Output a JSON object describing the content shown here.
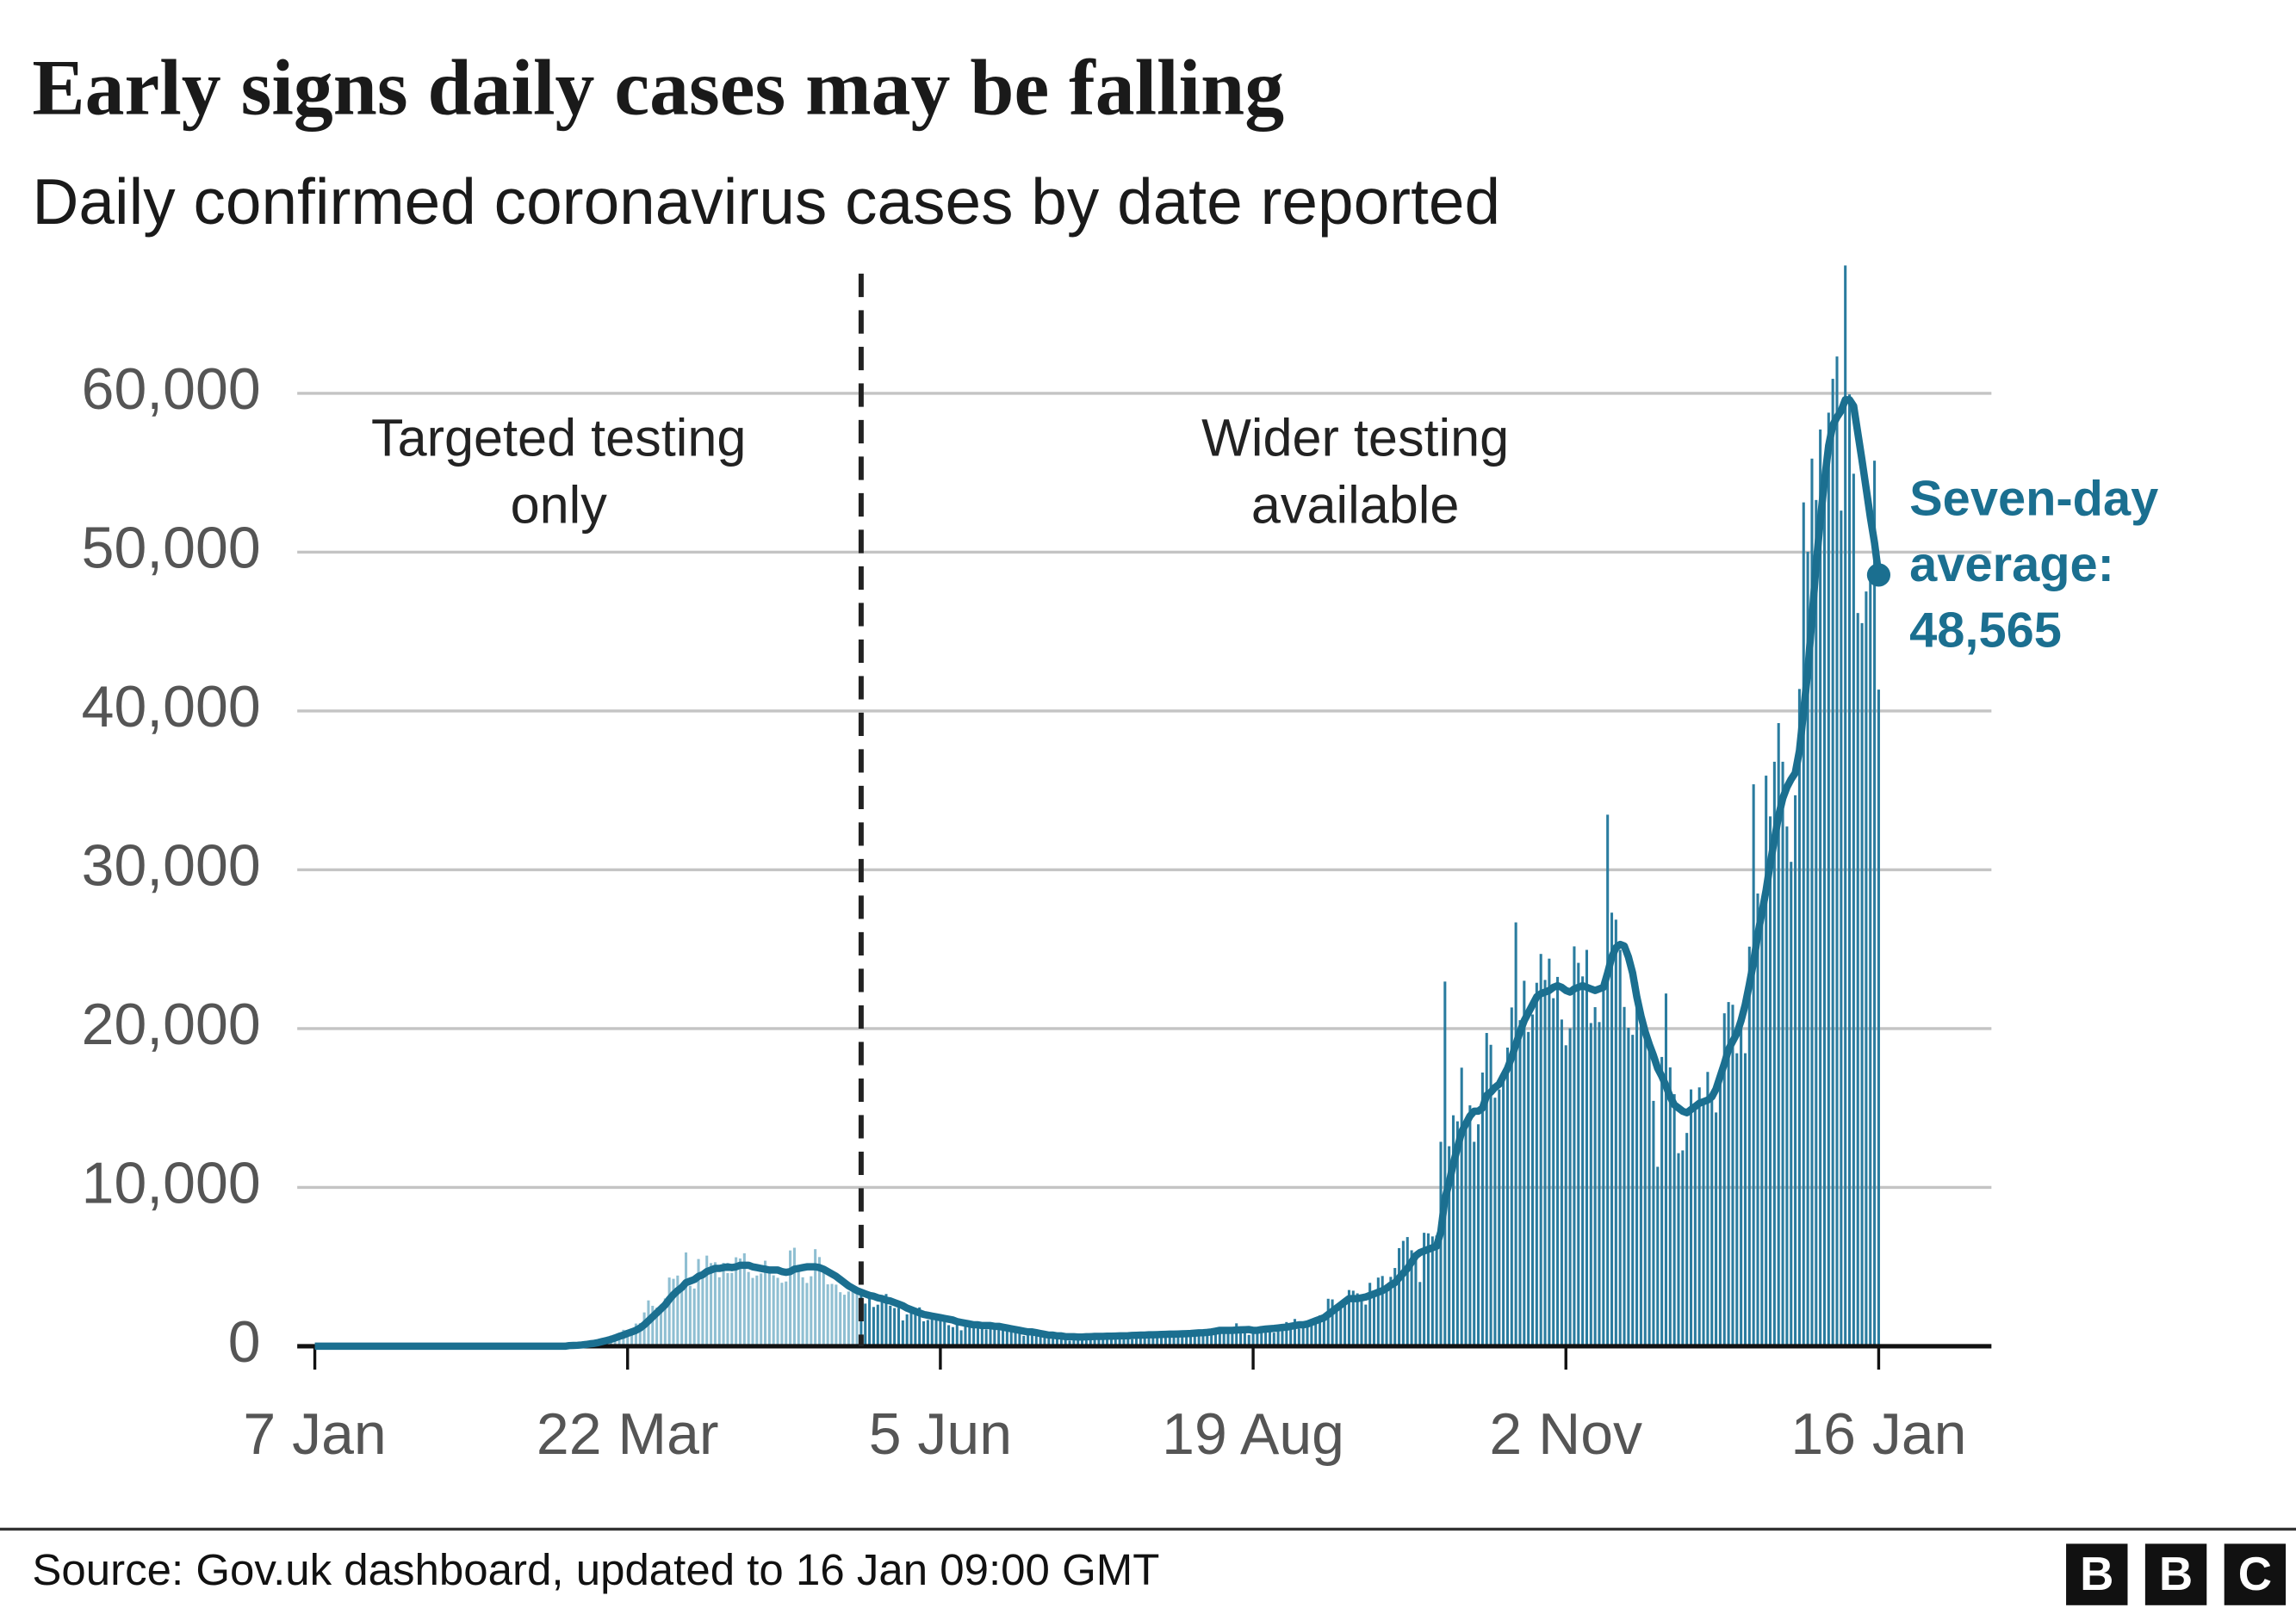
{
  "chart_data": {
    "type": "bar",
    "title": "Early signs daily cases may be falling",
    "subtitle": "Daily confirmed coronavirus cases by date reported",
    "source": "Source: Gov.uk dashboard, updated to 16 Jan 09:00 GMT",
    "logo": [
      "B",
      "B",
      "C"
    ],
    "color": "#2a7c9f",
    "early_color": "#8fbfd2",
    "divider_index": 131,
    "annotations": [
      [
        "Targeted testing",
        "only"
      ],
      [
        "Wider testing",
        "available"
      ]
    ],
    "ylim": [
      0,
      68000
    ],
    "yticks": [
      0,
      {
        "value": 10000,
        "label": "10,000"
      },
      {
        "value": 20000,
        "label": "20,000"
      },
      {
        "value": 30000,
        "label": "30,000"
      },
      {
        "value": 40000,
        "label": "40,000"
      },
      {
        "value": 50000,
        "label": "50,000"
      },
      {
        "value": 60000,
        "label": "60,000"
      }
    ],
    "grid": true,
    "categories": [
      "7 Jan",
      null,
      null,
      null,
      null,
      null,
      null,
      null,
      null,
      null,
      null,
      null,
      null,
      null,
      null,
      null,
      null,
      null,
      null,
      null,
      null,
      null,
      null,
      null,
      null,
      null,
      null,
      null,
      null,
      null,
      null,
      null,
      null,
      null,
      null,
      null,
      null,
      null,
      null,
      null,
      null,
      null,
      null,
      null,
      null,
      null,
      null,
      null,
      null,
      null,
      null,
      null,
      null,
      null,
      null,
      null,
      null,
      null,
      null,
      null,
      null,
      null,
      null,
      null,
      null,
      null,
      null,
      null,
      null,
      null,
      null,
      null,
      null,
      null,
      null,
      "22 Mar",
      null,
      null,
      null,
      null,
      null,
      null,
      null,
      null,
      null,
      null,
      null,
      null,
      null,
      null,
      null,
      null,
      null,
      null,
      null,
      null,
      null,
      null,
      null,
      null,
      null,
      null,
      null,
      null,
      null,
      null,
      null,
      null,
      null,
      null,
      null,
      null,
      null,
      null,
      null,
      null,
      null,
      null,
      null,
      null,
      null,
      null,
      null,
      null,
      null,
      null,
      null,
      null,
      null,
      null,
      null,
      null,
      null,
      null,
      null,
      null,
      null,
      null,
      null,
      null,
      null,
      null,
      null,
      null,
      null,
      null,
      null,
      null,
      null,
      null,
      "5 Jun",
      null,
      null,
      null,
      null,
      null,
      null,
      null,
      null,
      null,
      null,
      null,
      null,
      null,
      null,
      null,
      null,
      null,
      null,
      null,
      null,
      null,
      null,
      null,
      null,
      null,
      null,
      null,
      null,
      null,
      null,
      null,
      null,
      null,
      null,
      null,
      null,
      null,
      null,
      null,
      null,
      null,
      null,
      null,
      null,
      null,
      null,
      null,
      null,
      null,
      null,
      null,
      null,
      null,
      null,
      null,
      null,
      null,
      null,
      null,
      null,
      null,
      null,
      null,
      null,
      null,
      null,
      null,
      null,
      null,
      null,
      null,
      null,
      null,
      null,
      "19 Aug",
      null,
      null,
      null,
      null,
      null,
      null,
      null,
      null,
      null,
      null,
      null,
      null,
      null,
      null,
      null,
      null,
      null,
      null,
      null,
      null,
      null,
      null,
      null,
      null,
      null,
      null,
      null,
      null,
      null,
      null,
      null,
      null,
      null,
      null,
      null,
      null,
      null,
      null,
      null,
      null,
      null,
      null,
      null,
      null,
      null,
      null,
      null,
      null,
      null,
      null,
      null,
      null,
      null,
      null,
      null,
      null,
      null,
      null,
      null,
      null,
      null,
      null,
      null,
      null,
      null,
      null,
      null,
      null,
      null,
      null,
      null,
      null,
      null,
      null,
      "2 Nov",
      null,
      null,
      null,
      null,
      null,
      null,
      null,
      null,
      null,
      null,
      null,
      null,
      null,
      null,
      null,
      null,
      null,
      null,
      null,
      null,
      null,
      null,
      null,
      null,
      null,
      null,
      null,
      null,
      null,
      null,
      null,
      null,
      null,
      null,
      null,
      null,
      null,
      null,
      null,
      null,
      null,
      null,
      null,
      null,
      null,
      null,
      null,
      null,
      null,
      null,
      null,
      null,
      null,
      null,
      null,
      null,
      null,
      null,
      null,
      null,
      null,
      null,
      null,
      null,
      null,
      null,
      null,
      null,
      null,
      null,
      null,
      null,
      null,
      null,
      "16 Jan"
    ],
    "values": [
      0,
      0,
      0,
      0,
      0,
      0,
      0,
      0,
      0,
      0,
      0,
      0,
      0,
      0,
      0,
      0,
      0,
      0,
      0,
      0,
      0,
      0,
      0,
      0,
      0,
      0,
      0,
      0,
      0,
      0,
      0,
      0,
      0,
      0,
      0,
      0,
      0,
      0,
      0,
      0,
      0,
      0,
      0,
      0,
      0,
      0,
      0,
      0,
      0,
      0,
      0,
      0,
      0,
      0,
      12,
      4,
      11,
      34,
      29,
      48,
      43,
      67,
      48,
      52,
      83,
      134,
      208,
      342,
      251,
      152,
      407,
      676,
      643,
      714,
      1035,
      665,
      967,
      1427,
      1452,
      2129,
      2885,
      2546,
      2433,
      2619,
      3009,
      4324,
      4244,
      4450,
      3735,
      5903,
      3802,
      3634,
      5491,
      4344,
      5706,
      5234,
      5288,
      4342,
      5252,
      4603,
      4617,
      5599,
      5525,
      5850,
      4676,
      4301,
      4451,
      4583,
      5386,
      4913,
      4463,
      4309,
      3996,
      4076,
      6032,
      6201,
      4806,
      4339,
      3985,
      4406,
      6111,
      5614,
      4649,
      3896,
      3923,
      3877,
      3403,
      3242,
      3446,
      3560,
      3450,
      3534,
      2684,
      3412,
      2472,
      2615,
      2959,
      3287,
      2553,
      2405,
      2412,
      1625,
      2004,
      2095,
      2013,
      2445,
      1570,
      1653,
      1871,
      1805,
      1650,
      1557,
      1326,
      1205,
      1741,
      1003,
      1266,
      1541,
      1425,
      1514,
      1346,
      1056,
      1205,
      1279,
      1221,
      1118,
      1295,
      958,
      921,
      874,
      653,
      1118,
      1006,
      890,
      814,
      689,
      829,
      576,
      544,
      624,
      516,
      352,
      581,
      630,
      512,
      642,
      820,
      650,
      530,
      538,
      463,
      512,
      687,
      848,
      668,
      726,
      445,
      560,
      769,
      760,
      767,
      580,
      685,
      763,
      581,
      846,
      880,
      743,
      744,
      938,
      670,
      892,
      950,
      871,
      758,
      1062,
      1148,
      1012,
      1009,
      812,
      1182,
      1441,
      1033,
      1040,
      713,
      1089,
      1182,
      1033,
      1288,
      1041,
      853,
      1184,
      1048,
      1522,
      1276,
      1715,
      1108,
      1406,
      1295,
      1508,
      1735,
      1940,
      1813,
      2988,
      2948,
      2460,
      2659,
      2919,
      3539,
      3497,
      3330,
      3105,
      2621,
      3991,
      3395,
      4322,
      4422,
      3899,
      4368,
      4926,
      6178,
      6634,
      6874,
      6042,
      5693,
      4044,
      7143,
      7108,
      6914,
      6968,
      12872,
      22961,
      12594,
      14542,
      14162,
      17540,
      13864,
      15166,
      12872,
      13972,
      17234,
      19724,
      18980,
      15650,
      16171,
      16982,
      18804,
      21331,
      26688,
      20530,
      23012,
      19790,
      20890,
      22885,
      24701,
      23065,
      24405,
      21915,
      23254,
      20572,
      18950,
      20018,
      25177,
      24141,
      23287,
      24957,
      20350,
      21350,
      20412,
      22950,
      33470,
      27301,
      26860,
      24962,
      21363,
      20051,
      19609,
      22915,
      20252,
      19875,
      18662,
      15450,
      11299,
      18213,
      22210,
      17555,
      15871,
      12155,
      12330,
      13430,
      16170,
      14879,
      16298,
      15539,
      17272,
      15539,
      14718,
      16578,
      20964,
      21672,
      21502,
      18447,
      20263,
      18450,
      25161,
      35383,
      28507,
      27052,
      35928,
      33364,
      36804,
      39237,
      36804,
      32725,
      30501,
      34693,
      41385,
      53135,
      50023,
      55892,
      53285,
      57725,
      54990,
      58784,
      60916,
      62322,
      52618,
      68053,
      59937,
      54940,
      46169,
      45533,
      47525,
      48682,
      55761,
      41346
    ],
    "average": {
      "color": "#1b6f90",
      "label": [
        "Seven-day",
        "average:"
      ],
      "last_value_label": "48,565",
      "values": [
        0,
        0,
        0,
        0,
        0,
        0,
        0,
        0,
        0,
        0,
        0,
        0,
        0,
        0,
        0,
        0,
        0,
        0,
        0,
        0,
        0,
        0,
        0,
        0,
        0,
        0,
        0,
        0,
        0,
        0,
        0,
        0,
        0,
        0,
        0,
        0,
        0,
        0,
        0,
        0,
        0,
        0,
        0,
        0,
        0,
        0,
        0,
        0,
        0,
        0,
        0,
        0,
        0,
        0,
        0,
        0,
        0,
        0,
        0,
        0,
        0,
        40,
        50,
        60,
        80,
        110,
        150,
        180,
        230,
        300,
        360,
        430,
        520,
        620,
        700,
        810,
        900,
        1000,
        1150,
        1350,
        1600,
        1850,
        2100,
        2350,
        2600,
        2950,
        3250,
        3500,
        3700,
        4000,
        4100,
        4200,
        4400,
        4500,
        4700,
        4800,
        4900,
        4900,
        4950,
        5000,
        4950,
        5000,
        5100,
        5100,
        5100,
        5000,
        4950,
        4900,
        4850,
        4800,
        4800,
        4800,
        4700,
        4650,
        4700,
        4850,
        4900,
        4950,
        5000,
        5000,
        5000,
        4950,
        4850,
        4700,
        4550,
        4400,
        4200,
        4000,
        3800,
        3650,
        3500,
        3400,
        3300,
        3200,
        3150,
        3050,
        3000,
        2900,
        2850,
        2750,
        2650,
        2550,
        2400,
        2300,
        2200,
        2100,
        2000,
        1950,
        1900,
        1850,
        1800,
        1750,
        1700,
        1650,
        1550,
        1500,
        1450,
        1400,
        1350,
        1350,
        1300,
        1300,
        1300,
        1250,
        1250,
        1200,
        1150,
        1100,
        1050,
        1000,
        950,
        900,
        900,
        850,
        800,
        750,
        700,
        700,
        650,
        650,
        600,
        600,
        600,
        580,
        580,
        600,
        600,
        620,
        620,
        620,
        630,
        630,
        640,
        650,
        650,
        660,
        680,
        690,
        700,
        700,
        720,
        720,
        730,
        740,
        750,
        760,
        760,
        770,
        780,
        790,
        800,
        820,
        840,
        850,
        870,
        900,
        950,
        1000,
        1000,
        1000,
        1000,
        1020,
        1030,
        1040,
        1050,
        1000,
        1000,
        1050,
        1080,
        1100,
        1120,
        1150,
        1180,
        1200,
        1250,
        1300,
        1350,
        1350,
        1400,
        1500,
        1600,
        1700,
        1800,
        2000,
        2200,
        2400,
        2600,
        2800,
        3000,
        3000,
        3000,
        3050,
        3100,
        3200,
        3300,
        3400,
        3500,
        3650,
        3850,
        4000,
        4300,
        4600,
        4900,
        5300,
        5700,
        5900,
        6000,
        6100,
        6200,
        6300,
        7200,
        9300,
        10300,
        11500,
        12500,
        13500,
        14000,
        14500,
        14800,
        14800,
        15000,
        15800,
        16000,
        16300,
        16500,
        17000,
        17500,
        18200,
        19000,
        19800,
        20500,
        21000,
        21500,
        22000,
        22200,
        22300,
        22400,
        22600,
        22700,
        22600,
        22400,
        22300,
        22500,
        22600,
        22700,
        22600,
        22500,
        22400,
        22500,
        22600,
        23500,
        24500,
        25100,
        25300,
        25200,
        24500,
        23500,
        22000,
        20800,
        19800,
        19000,
        18300,
        17500,
        17000,
        16400,
        15700,
        15200,
        15000,
        14800,
        14700,
        14900,
        15100,
        15300,
        15400,
        15500,
        15700,
        16200,
        17000,
        17800,
        18700,
        19200,
        19700,
        20500,
        21500,
        22800,
        24200,
        25900,
        27300,
        28700,
        30400,
        31900,
        33400,
        34500,
        35200,
        35700,
        36100,
        37500,
        40000,
        42500,
        45800,
        49200,
        52000,
        54500,
        56700,
        58000,
        58500,
        58900,
        59600,
        59600,
        59200,
        57500,
        55800,
        54000,
        52200,
        50600,
        48565
      ]
    }
  }
}
